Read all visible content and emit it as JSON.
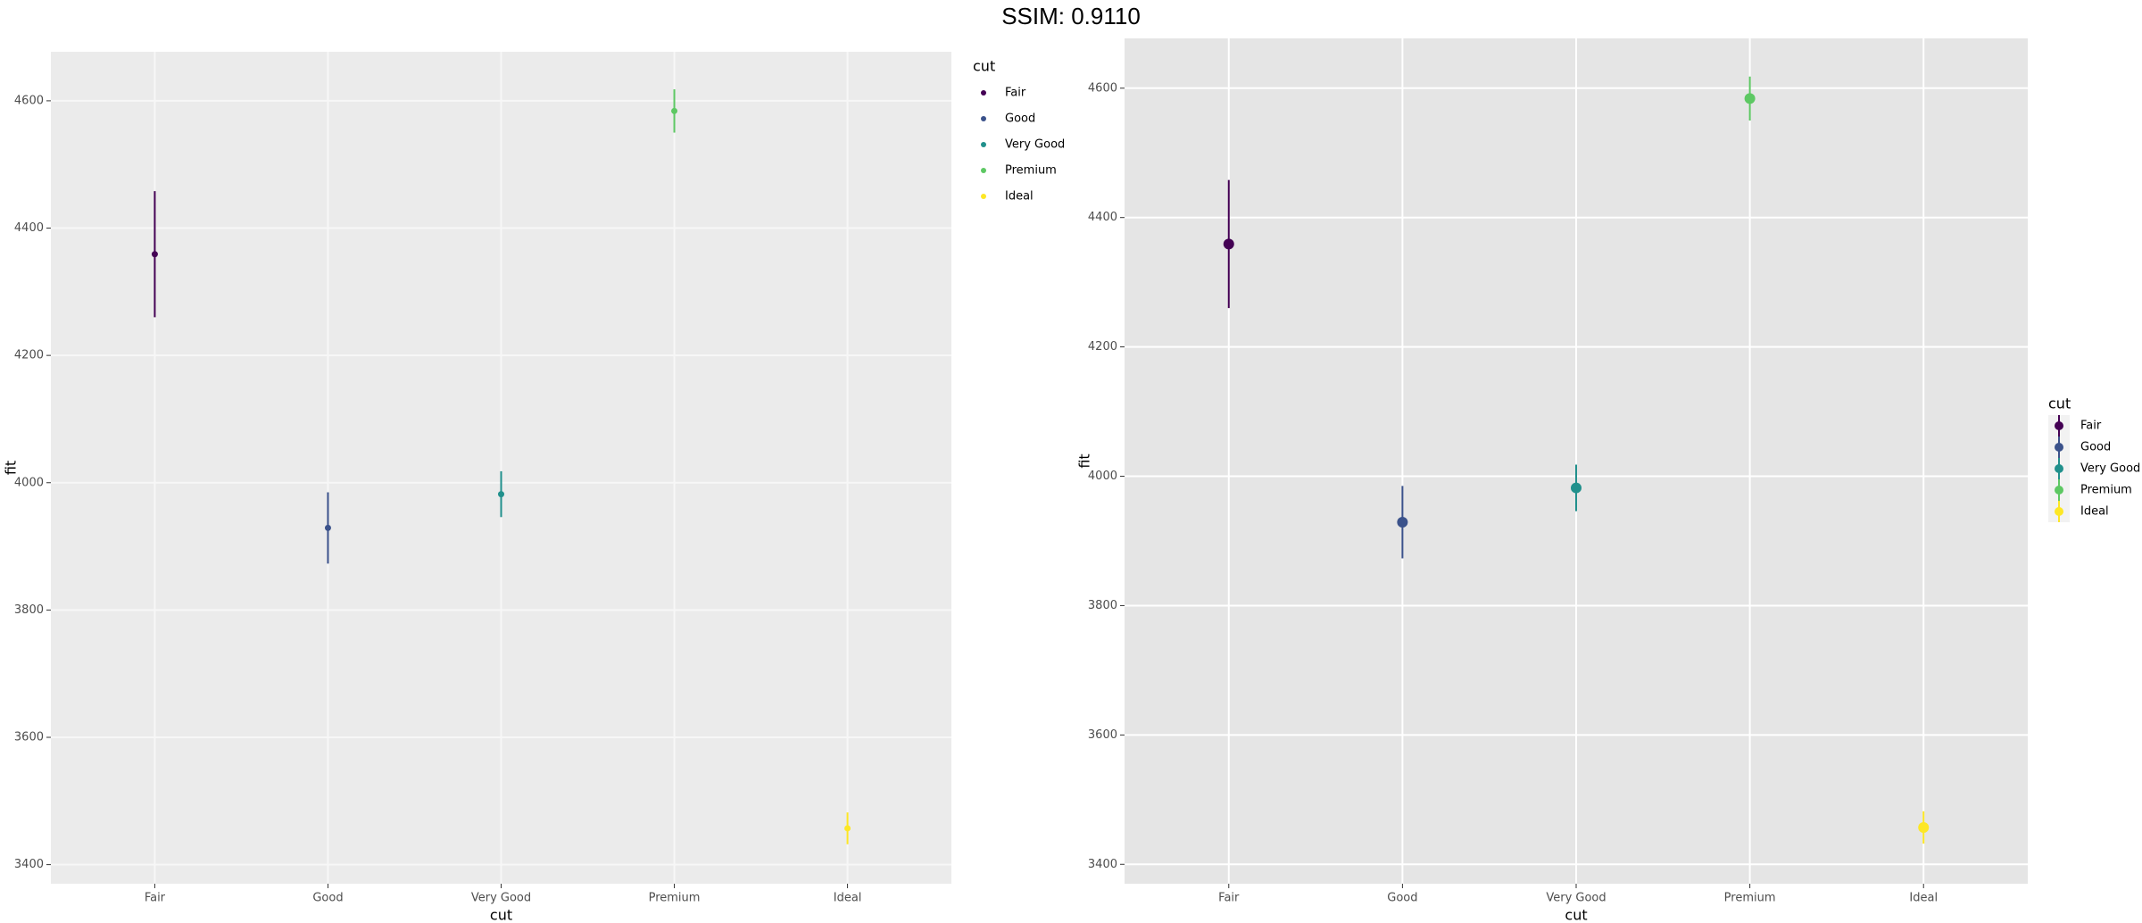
{
  "title": "SSIM: 0.9110",
  "chart_data": [
    {
      "type": "pointrange",
      "x_label": "cut",
      "y_label": "fit",
      "legend_title": "cut",
      "categories": [
        "Fair",
        "Good",
        "Very Good",
        "Premium",
        "Ideal"
      ],
      "values": [
        4359,
        3929,
        3982,
        4584,
        3457
      ],
      "errors": [
        99,
        56,
        36,
        34,
        25
      ],
      "colors": [
        "#440154",
        "#3b528b",
        "#21908c",
        "#5dc863",
        "#fde725"
      ],
      "ylim": [
        3370,
        4677
      ],
      "yticks": [
        3400,
        3600,
        3800,
        4000,
        4200,
        4400,
        4600
      ],
      "grid": true
    },
    {
      "type": "pointrange",
      "x_label": "cut",
      "y_label": "fit",
      "legend_title": "cut",
      "categories": [
        "Fair",
        "Good",
        "Very Good",
        "Premium",
        "Ideal"
      ],
      "values": [
        4359,
        3929,
        3982,
        4584,
        3457
      ],
      "errors": [
        99,
        56,
        36,
        34,
        25
      ],
      "colors": [
        "#440154",
        "#3b528b",
        "#21908c",
        "#5dc863",
        "#fde725"
      ],
      "ylim": [
        3370,
        4677
      ],
      "yticks": [
        3400,
        3600,
        3800,
        4000,
        4200,
        4400,
        4600
      ],
      "grid": true
    }
  ]
}
